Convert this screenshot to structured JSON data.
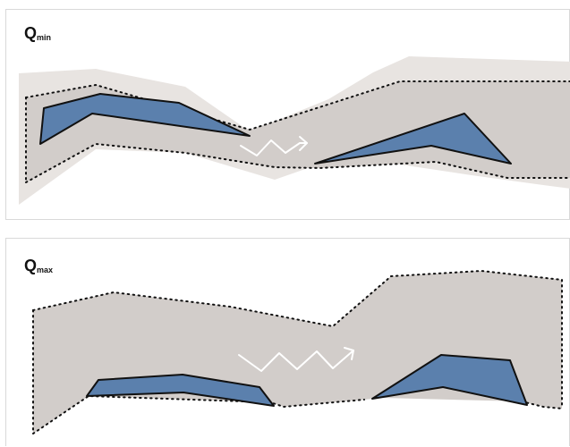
{
  "panels": {
    "min": {
      "label_main": "Q",
      "label_sub": "min"
    },
    "max": {
      "label_main": "Q",
      "label_sub": "max"
    }
  },
  "colors": {
    "light_band": "#e8e4e1",
    "channel": "#d2cdca",
    "bar_fill": "#5b80ad",
    "bar_stroke": "#111111",
    "arrow": "#ffffff",
    "border": "#d9d9d9"
  },
  "icons": [
    "wavy-flow-arrow-icon"
  ]
}
